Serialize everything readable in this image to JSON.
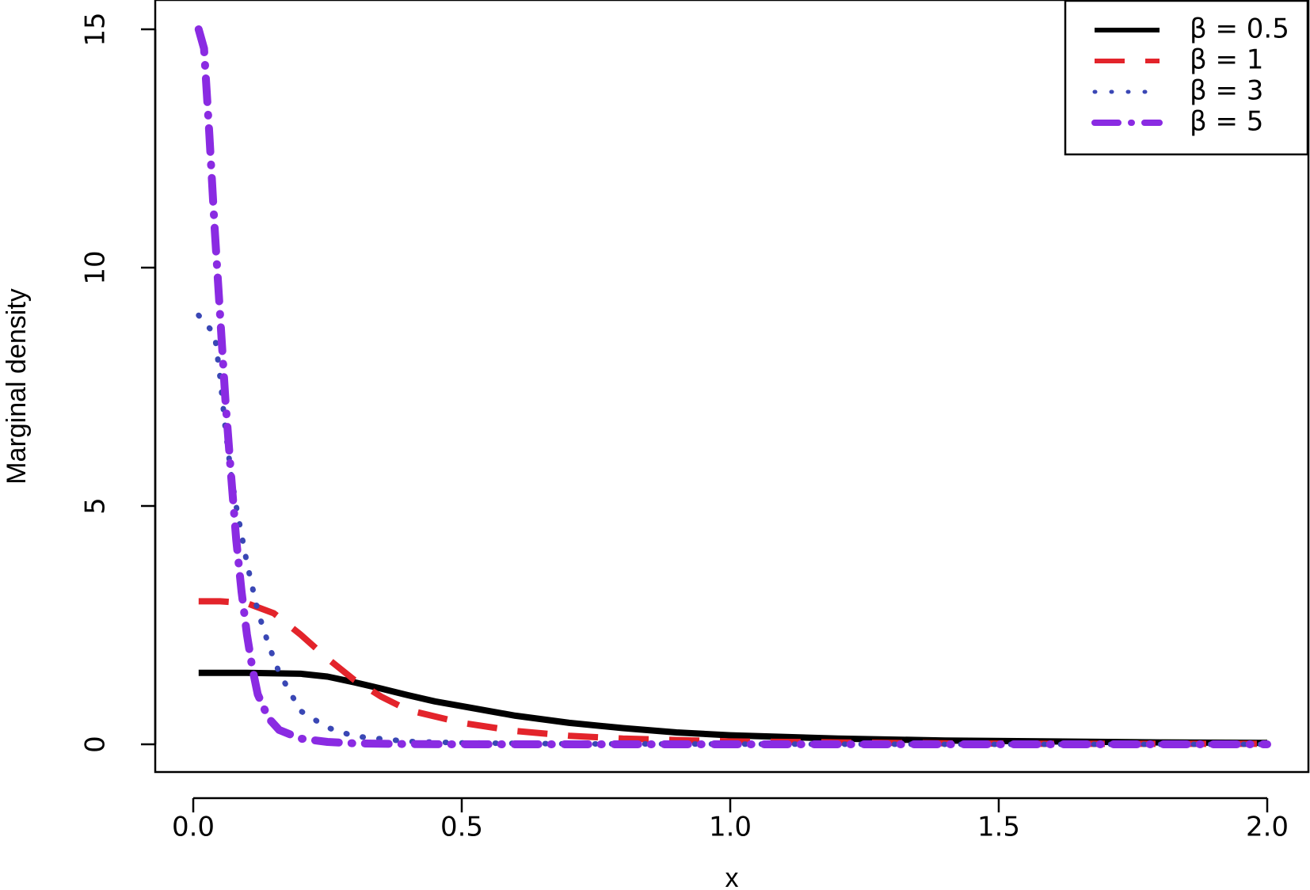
{
  "chart_data": {
    "type": "line",
    "title": "",
    "xlabel": "x",
    "ylabel": "Marginal density",
    "xlim": [
      0,
      2
    ],
    "ylim": [
      0,
      15
    ],
    "xticks": [
      0.0,
      0.5,
      1.0,
      1.5,
      2.0
    ],
    "xtick_labels": [
      "0.0",
      "0.5",
      "1.0",
      "1.5",
      "2.0"
    ],
    "yticks": [
      0,
      5,
      10,
      15
    ],
    "ytick_labels": [
      "0",
      "5",
      "10",
      "15"
    ],
    "grid": false,
    "legend_position": "top-right",
    "series": [
      {
        "name": "β = 0.5",
        "color": "#000000",
        "style": "solid",
        "x": [
          0.01,
          0.1,
          0.2,
          0.25,
          0.3,
          0.35,
          0.4,
          0.45,
          0.5,
          0.6,
          0.7,
          0.8,
          0.9,
          1.0,
          1.2,
          1.4,
          1.6,
          1.8,
          2.0
        ],
        "y": [
          1.5,
          1.5,
          1.48,
          1.42,
          1.3,
          1.17,
          1.03,
          0.9,
          0.8,
          0.6,
          0.45,
          0.34,
          0.25,
          0.19,
          0.12,
          0.08,
          0.06,
          0.04,
          0.03
        ]
      },
      {
        "name": "β = 1",
        "color": "#e3242b",
        "style": "dashed",
        "x": [
          0.01,
          0.05,
          0.1,
          0.15,
          0.2,
          0.25,
          0.3,
          0.35,
          0.4,
          0.5,
          0.6,
          0.7,
          0.8,
          0.9,
          1.0,
          1.2,
          1.4,
          1.6,
          1.8,
          2.0
        ],
        "y": [
          3.0,
          3.0,
          2.96,
          2.75,
          2.3,
          1.8,
          1.35,
          1.0,
          0.72,
          0.45,
          0.28,
          0.18,
          0.12,
          0.09,
          0.06,
          0.04,
          0.02,
          0.01,
          0.01,
          0.01
        ]
      },
      {
        "name": "β = 3",
        "color": "#3a47b5",
        "style": "dotted",
        "x": [
          0.01,
          0.04,
          0.05,
          0.06,
          0.07,
          0.08,
          0.09,
          0.1,
          0.11,
          0.12,
          0.14,
          0.16,
          0.2,
          0.25,
          0.3,
          0.4,
          0.5,
          0.7,
          1.0,
          1.5,
          2.0
        ],
        "y": [
          9.0,
          8.6,
          7.7,
          6.6,
          5.7,
          5.0,
          4.4,
          3.8,
          3.3,
          2.8,
          2.1,
          1.5,
          0.7,
          0.35,
          0.17,
          0.06,
          0.03,
          0.01,
          0.005,
          0.0,
          0.0
        ]
      },
      {
        "name": "β = 5",
        "color": "#8a2be2",
        "style": "dotdash",
        "x": [
          0.01,
          0.02,
          0.03,
          0.04,
          0.05,
          0.06,
          0.07,
          0.08,
          0.09,
          0.1,
          0.11,
          0.12,
          0.14,
          0.16,
          0.2,
          0.25,
          0.3,
          0.4,
          0.5,
          0.7,
          1.0,
          1.5,
          2.0
        ],
        "y": [
          15.0,
          14.6,
          12.8,
          10.8,
          9.0,
          7.2,
          5.7,
          4.3,
          3.2,
          2.3,
          1.6,
          1.05,
          0.55,
          0.3,
          0.12,
          0.05,
          0.02,
          0.005,
          0.0,
          0.0,
          0.0,
          0.0,
          0.0
        ]
      }
    ]
  }
}
